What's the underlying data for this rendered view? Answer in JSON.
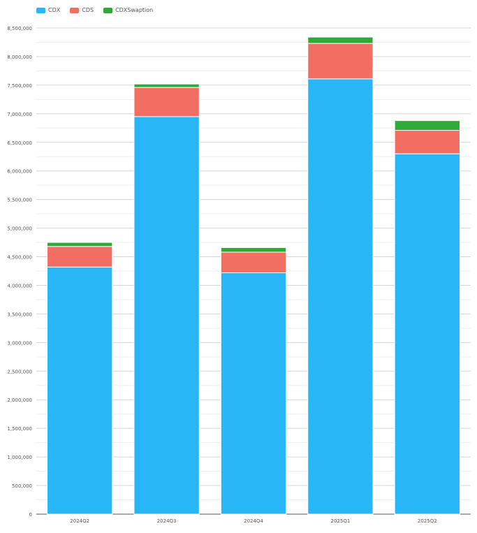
{
  "chart_data": {
    "type": "bar",
    "stacked": true,
    "categories": [
      "2024Q2",
      "2024Q3",
      "2024Q4",
      "2025Q1",
      "2025Q2"
    ],
    "series": [
      {
        "name": "CDX",
        "color": "#29b6f6",
        "values": [
          4320000,
          6950000,
          4220000,
          7610000,
          6300000
        ]
      },
      {
        "name": "CDS",
        "color": "#f26d62",
        "values": [
          360000,
          510000,
          360000,
          620000,
          410000
        ]
      },
      {
        "name": "CDXSwaption",
        "color": "#2eaa37",
        "values": [
          70000,
          60000,
          80000,
          110000,
          170000
        ]
      }
    ],
    "ylim": [
      0,
      8500000
    ],
    "ytick_step": 500000,
    "yticks": [
      "0",
      "500,000",
      "1,000,000",
      "1,500,000",
      "2,000,000",
      "2,500,000",
      "3,000,000",
      "3,500,000",
      "4,000,000",
      "4,500,000",
      "5,000,000",
      "5,500,000",
      "6,000,000",
      "6,500,000",
      "7,000,000",
      "7,500,000",
      "8,000,000",
      "8,500,000"
    ],
    "grid": true,
    "legend_position": "top-left",
    "title": "",
    "xlabel": "",
    "ylabel": ""
  }
}
